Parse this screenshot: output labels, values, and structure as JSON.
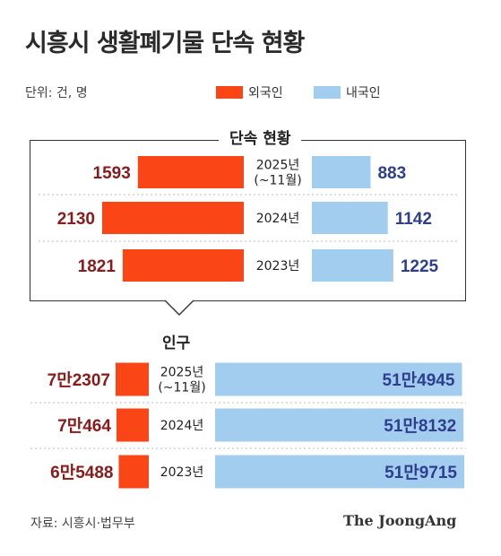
{
  "title": "시흥시 생활폐기물 단속 현황",
  "unit": "단위: 건, 명",
  "legend": [
    {
      "label": "외국인",
      "color": "#fa4616"
    },
    {
      "label": "내국인",
      "color": "#a3cdef"
    }
  ],
  "source": "자료: 시흥시·법무부",
  "brand": "The JoongAng",
  "chart_data": [
    {
      "type": "bar",
      "title": "단속 현황",
      "categories": [
        "2025년\n(~11월)",
        "2024년",
        "2023년"
      ],
      "series": [
        {
          "name": "외국인",
          "values": [
            1593,
            2130,
            1821
          ],
          "labels": [
            "1593",
            "2130",
            "1821"
          ],
          "color": "#fa4616",
          "label_color": "#8b1a1a"
        },
        {
          "name": "내국인",
          "values": [
            883,
            1142,
            1225
          ],
          "labels": [
            "883",
            "1142",
            "1225"
          ],
          "color": "#a3cdef",
          "label_color": "#2e3f8f"
        }
      ]
    },
    {
      "type": "bar",
      "title": "인구",
      "categories": [
        "2025년\n(~11월)",
        "2024년",
        "2023년"
      ],
      "series": [
        {
          "name": "외국인",
          "values": [
            72307,
            70464,
            65488
          ],
          "labels": [
            "7만2307",
            "7만464",
            "6만5488"
          ],
          "color": "#fa4616",
          "label_color": "#8b1a1a"
        },
        {
          "name": "내국인",
          "values": [
            514945,
            518132,
            519715
          ],
          "labels": [
            "51만4945",
            "51만8132",
            "51만9715"
          ],
          "color": "#a3cdef",
          "label_color": "#2e3f8f"
        }
      ]
    }
  ]
}
